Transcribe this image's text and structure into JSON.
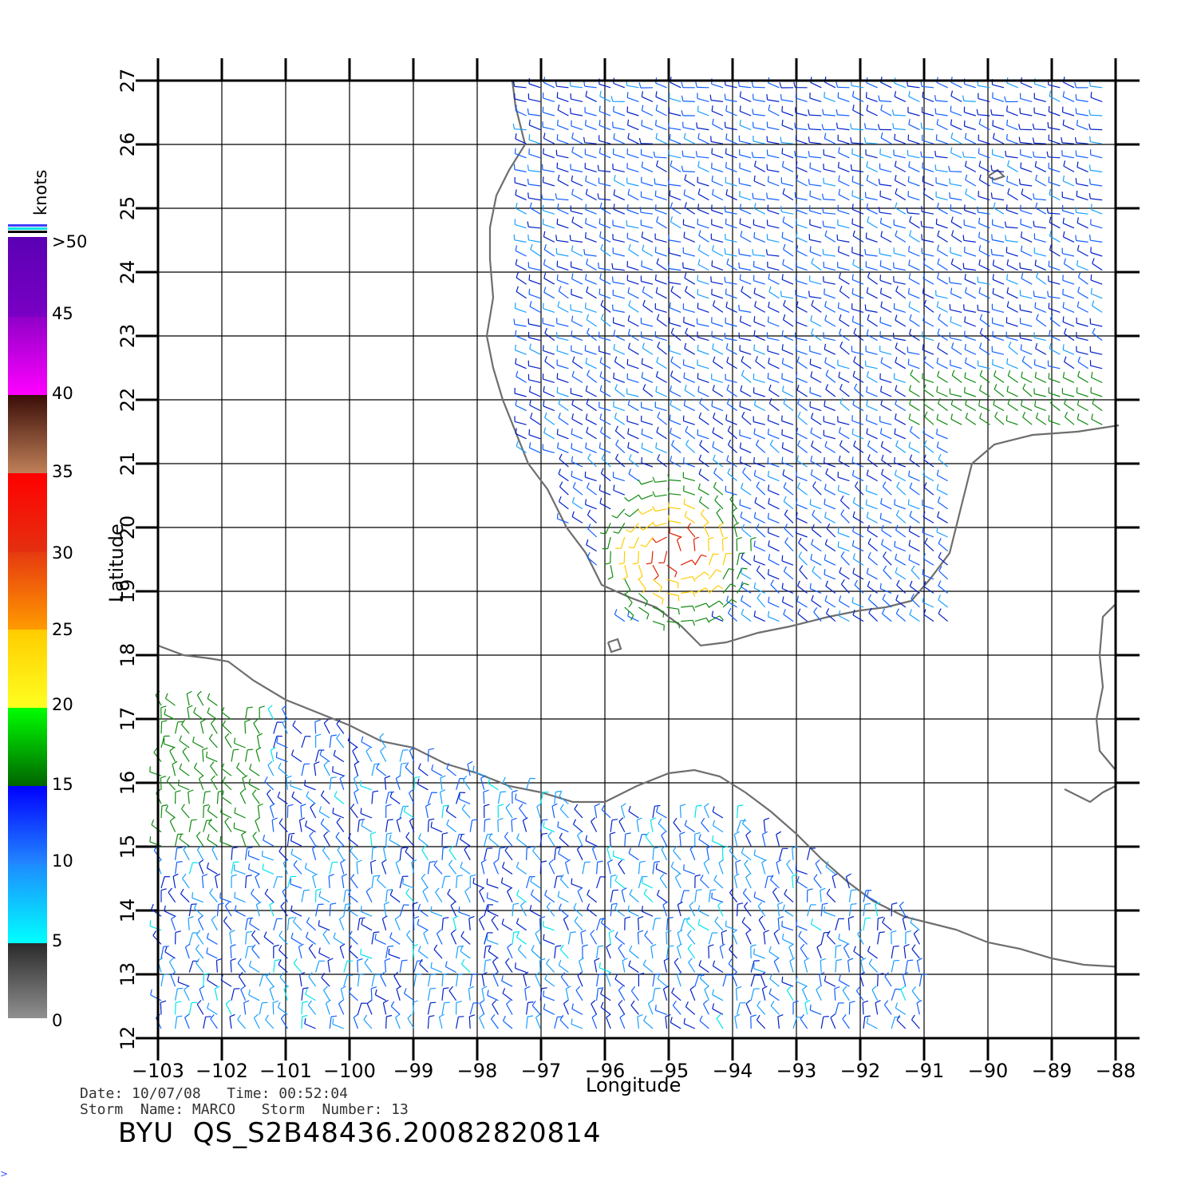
{
  "map": {
    "xlabel": "Longitude",
    "ylabel": "Latitude",
    "lon_range": [
      -103,
      -88
    ],
    "lat_range": [
      12,
      27
    ],
    "lon_ticks": [
      "−103",
      "−102",
      "−101",
      "−100",
      "−99",
      "−98",
      "−97",
      "−96",
      "−95",
      "−94",
      "−93",
      "−92",
      "−91",
      "−90",
      "−89",
      "−88"
    ],
    "lat_ticks": [
      "12",
      "13",
      "14",
      "15",
      "16",
      "17",
      "18",
      "19",
      "20",
      "21",
      "22",
      "23",
      "24",
      "25",
      "26",
      "27"
    ],
    "grid": true,
    "coastline_color": "#6e6e6e",
    "gulf_wind_direction": "northwesterly / westerly barbs",
    "pacific_wind_direction": "variable barbs",
    "max_wind_region_lon_lat": [
      -94.9,
      19.6
    ]
  },
  "colorbar": {
    "units": "knots",
    "labels": [
      ">50",
      "45",
      "40",
      "35",
      "30",
      "25",
      "20",
      "15",
      "10",
      "5",
      "0"
    ],
    "segments": [
      {
        "range": "45-50",
        "top": "#5a00b4",
        "bottom": "#7a00c4"
      },
      {
        "range": "40-45",
        "top": "#9000c8",
        "bottom": "#ff00ff"
      },
      {
        "range": "35-40",
        "top": "#3a0d08",
        "bottom": "#c08058"
      },
      {
        "range": "30-35",
        "top": "#ff0000",
        "bottom": "#e43010"
      },
      {
        "range": "25-30",
        "top": "#e63a10",
        "bottom": "#ff9a00"
      },
      {
        "range": "20-25",
        "top": "#ffcc00",
        "bottom": "#ffff20"
      },
      {
        "range": "15-20",
        "top": "#00ff00",
        "bottom": "#006400"
      },
      {
        "range": "10-15",
        "top": "#0000ff",
        "bottom": "#2288ff"
      },
      {
        "range": "5-10",
        "top": "#1d8cff",
        "bottom": "#00ffff"
      },
      {
        "range": "0-5",
        "top": "#2a2a2a",
        "bottom": "#909090"
      }
    ],
    "cap_colors": [
      "#4040ff",
      "#00e0e0",
      "#000000"
    ]
  },
  "footer": {
    "date_label": "Date:",
    "date": "10/07/08",
    "time_label": "Time:",
    "time": "00:52:04",
    "storm_name_label": "Storm  Name:",
    "storm_name": "MARCO",
    "storm_number_label": "Storm  Number:",
    "storm_number": "13",
    "product": "BYU  QS_S2B48436.20082820814"
  },
  "corner_mark": ">"
}
